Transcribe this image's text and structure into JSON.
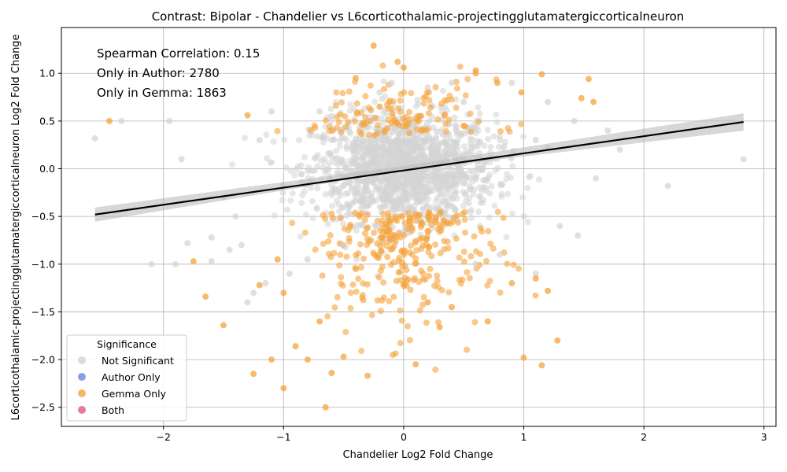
{
  "chart_data": {
    "type": "scatter",
    "title": "Contrast: Bipolar - Chandelier vs L6corticothalamic-projectingglutamatergiccorticalneuron",
    "xlabel": "Chandelier Log2 Fold Change",
    "ylabel": "L6corticothalamic-projectingglutamatergiccorticalneuron Log2 Fold Change",
    "xlim": [
      -2.85,
      3.1
    ],
    "ylim": [
      -2.7,
      1.48
    ],
    "xticks": [
      -2,
      -1,
      0,
      1,
      2,
      3
    ],
    "yticks": [
      -2.5,
      -2.0,
      -1.5,
      -1.0,
      -0.5,
      0.0,
      0.5,
      1.0
    ],
    "grid": true,
    "annotations": [
      "Spearman Correlation: 0.15",
      "Only in Author: 2780",
      "Only in Gemma: 1863"
    ],
    "legend": {
      "title": "Significance",
      "position": "lower-left",
      "entries": [
        {
          "label": "Not Significant",
          "color": "#d3d3d3"
        },
        {
          "label": "Author Only",
          "color": "#6a87de"
        },
        {
          "label": "Gemma Only",
          "color": "#f5a43c"
        },
        {
          "label": "Both",
          "color": "#df5a7a"
        }
      ]
    },
    "regression": {
      "x": [
        -2.57,
        2.83
      ],
      "y": [
        -0.48,
        0.49
      ],
      "color": "#000000"
    },
    "series": [
      {
        "name": "Not Significant",
        "color": "#d3d3d3",
        "points": [
          [
            -2.57,
            0.32
          ],
          [
            -2.35,
            0.5
          ],
          [
            -2.1,
            -1.0
          ],
          [
            -1.9,
            -1.0
          ],
          [
            -1.95,
            0.5
          ],
          [
            -1.85,
            0.1
          ],
          [
            -1.8,
            -0.78
          ],
          [
            -1.6,
            -0.72
          ],
          [
            -1.6,
            -0.97
          ],
          [
            -1.5,
            -0.3
          ],
          [
            -1.45,
            -0.85
          ],
          [
            -1.35,
            -0.8
          ],
          [
            -1.3,
            -1.4
          ],
          [
            -1.25,
            -1.3
          ],
          [
            -1.15,
            -1.2
          ],
          [
            -1.1,
            0.6
          ],
          [
            -0.95,
            -1.1
          ],
          [
            -0.8,
            -0.95
          ],
          [
            -0.7,
            0.6
          ],
          [
            -0.6,
            0.55
          ],
          [
            -0.2,
            0.8
          ],
          [
            -0.1,
            0.9
          ],
          [
            0.2,
            0.85
          ],
          [
            0.4,
            0.9
          ],
          [
            0.6,
            -1.0
          ],
          [
            0.8,
            -0.9
          ],
          [
            0.9,
            0.9
          ],
          [
            1.1,
            -1.1
          ],
          [
            1.2,
            0.7
          ],
          [
            1.3,
            -0.6
          ],
          [
            1.42,
            0.5
          ],
          [
            1.45,
            -0.7
          ],
          [
            1.6,
            -0.1
          ],
          [
            1.7,
            0.4
          ],
          [
            1.8,
            0.2
          ],
          [
            2.2,
            -0.18
          ],
          [
            2.83,
            0.1
          ],
          [
            1.0,
            -0.5
          ],
          [
            1.1,
            0.3
          ],
          [
            -1.2,
            0.3
          ],
          [
            -1.4,
            -0.5
          ],
          [
            -0.5,
            -0.8
          ],
          [
            0.5,
            0.7
          ]
        ]
      },
      {
        "name": "Gemma Only",
        "color": "#f5a43c",
        "points": [
          [
            -2.45,
            0.5
          ],
          [
            -1.75,
            -0.97
          ],
          [
            -1.65,
            -1.34
          ],
          [
            -1.5,
            -1.64
          ],
          [
            -1.3,
            0.56
          ],
          [
            -1.25,
            -2.15
          ],
          [
            -1.1,
            -2.0
          ],
          [
            -1.0,
            -2.3
          ],
          [
            -0.9,
            -1.86
          ],
          [
            -0.8,
            -2.0
          ],
          [
            -0.65,
            -2.5
          ],
          [
            -0.6,
            -2.14
          ],
          [
            -0.5,
            -1.97
          ],
          [
            -0.3,
            -2.17
          ],
          [
            -0.25,
            1.29
          ],
          [
            -0.05,
            1.12
          ],
          [
            0.0,
            1.06
          ],
          [
            0.1,
            -2.05
          ],
          [
            0.3,
            -1.66
          ],
          [
            0.6,
            1.03
          ],
          [
            0.6,
            1.0
          ],
          [
            0.78,
            0.9
          ],
          [
            0.98,
            0.8
          ],
          [
            1.1,
            -1.15
          ],
          [
            1.15,
            0.99
          ],
          [
            1.15,
            -2.06
          ],
          [
            1.2,
            -1.28
          ],
          [
            1.28,
            -1.8
          ],
          [
            1.0,
            -1.98
          ],
          [
            1.48,
            0.74
          ],
          [
            1.54,
            0.94
          ],
          [
            1.58,
            0.7
          ],
          [
            -1.2,
            -1.22
          ],
          [
            -1.0,
            -1.3
          ],
          [
            -0.4,
            0.95
          ],
          [
            -0.2,
            0.65
          ],
          [
            0.2,
            -1.4
          ],
          [
            0.7,
            -1.6
          ],
          [
            0.9,
            -1.2
          ],
          [
            -0.7,
            -1.6
          ],
          [
            -1.05,
            -0.95
          ],
          [
            0.4,
            -1.45
          ],
          [
            0.5,
            0.45
          ]
        ]
      }
    ]
  }
}
